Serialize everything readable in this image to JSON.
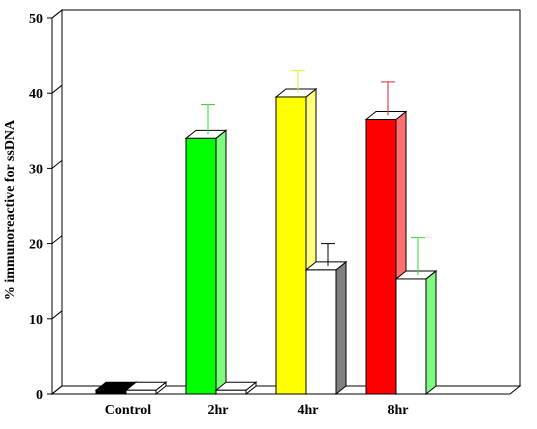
{
  "chart_data": {
    "type": "bar",
    "title": "",
    "xlabel": "",
    "ylabel": "% immunoreactive for ssDNA",
    "ylim": [
      0,
      50
    ],
    "yticks": [
      0,
      10,
      20,
      30,
      40,
      50
    ],
    "categories": [
      "Control",
      "2hr",
      "4hr",
      "8hr"
    ],
    "grid": false,
    "legend": "none",
    "style": "3d",
    "series": [
      {
        "role": "treated",
        "values": [
          0.5,
          34.0,
          39.5,
          36.5
        ],
        "error": [
          0,
          4.5,
          3.5,
          5.0
        ],
        "colors": [
          "#000000",
          "#00ff00",
          "#ffff00",
          "#ff0000"
        ],
        "side_colors": [
          "#000000",
          "#7ffa7f",
          "#ffff80",
          "#ff7070"
        ],
        "error_colors": [
          "#000000",
          "#33dd33",
          "#e8e830",
          "#cc2a2a"
        ]
      },
      {
        "role": "control",
        "values": [
          0.5,
          0.5,
          16.5,
          15.3
        ],
        "error": [
          0,
          0,
          3.5,
          5.5
        ],
        "colors": [
          "#ffffff",
          "#ffffff",
          "#ffffff",
          "#ffffff"
        ],
        "side_colors": [
          "#ffffff",
          "#ffffff",
          "#808080",
          "#7ffa7f"
        ],
        "error_colors": [
          "#000000",
          "#000000",
          "#000000",
          "#33dd33"
        ]
      }
    ]
  }
}
